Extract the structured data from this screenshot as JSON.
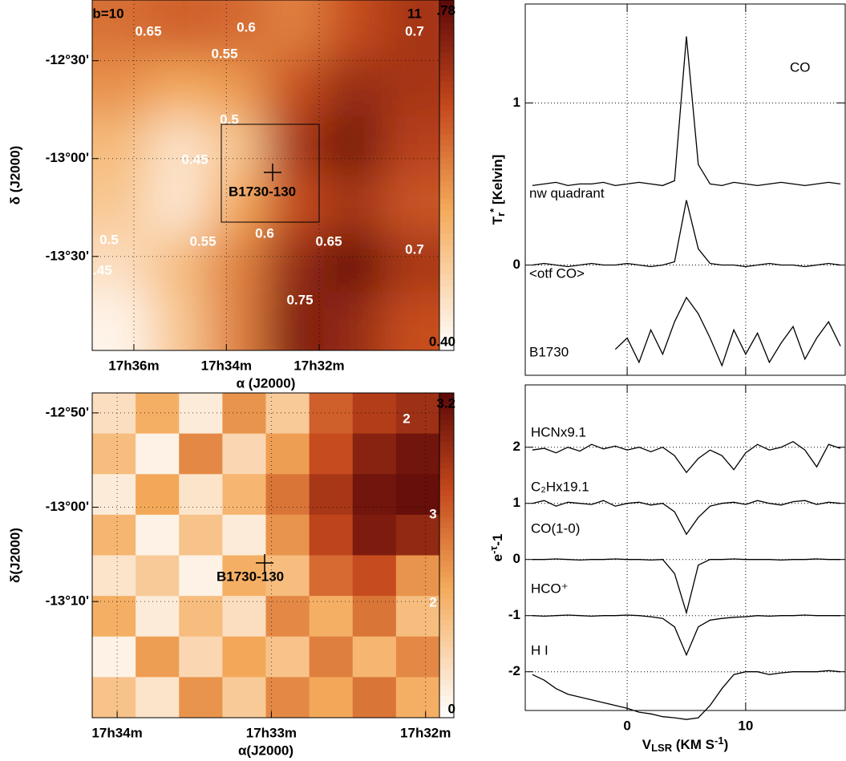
{
  "chart_data": [
    {
      "type": "heatmap",
      "z": [
        [
          0.62,
          0.64,
          0.63,
          0.6,
          0.66,
          0.7
        ],
        [
          0.58,
          0.55,
          0.57,
          0.66,
          0.72,
          0.7
        ],
        [
          0.52,
          0.45,
          0.5,
          0.7,
          0.76,
          0.68
        ],
        [
          0.5,
          0.44,
          0.55,
          0.66,
          0.7,
          0.65
        ],
        [
          0.46,
          0.52,
          0.6,
          0.72,
          0.77,
          0.7
        ],
        [
          0.42,
          0.5,
          0.6,
          0.74,
          0.72,
          0.66
        ]
      ],
      "zlim": [
        0.4,
        0.78
      ],
      "zticks": [
        {
          "value": 0.78,
          "label": ".78"
        },
        {
          "value": 0.4,
          "label": "0.40"
        }
      ],
      "xlim": [
        17.615,
        17.49
      ],
      "xticks": [
        {
          "value": 17.6,
          "label": "17h36m"
        },
        {
          "value": 17.5667,
          "label": "17h34m"
        },
        {
          "value": 17.5333,
          "label": "17h32m"
        }
      ],
      "ylim": [
        -13.98,
        -12.19
      ],
      "yticks": [
        {
          "value": -12.5,
          "label": "-12°30'"
        },
        {
          "value": -13.0,
          "label": "-13°00'"
        },
        {
          "value": -13.5,
          "label": "-13°30'"
        }
      ],
      "xlabel": "α (J2000)",
      "ylabel": "δ (J2000)",
      "source": "B1730-130",
      "grid": true,
      "annotations": [
        "b=10",
        "11",
        "0.65",
        "0.6",
        "0.7",
        "0.55",
        "0.5",
        "0.45",
        "0.5",
        "0.55",
        "0.6",
        "0.65",
        "0.7",
        "0.75",
        ".45"
      ]
    },
    {
      "type": "heatmap",
      "z": [
        [
          0.5,
          1.2,
          0.3,
          1.5,
          0.8,
          2.0,
          2.4,
          2.6
        ],
        [
          1.0,
          0.2,
          1.6,
          0.6,
          1.4,
          2.2,
          2.8,
          3.0
        ],
        [
          0.3,
          1.3,
          0.4,
          1.1,
          1.8,
          2.5,
          3.0,
          3.1
        ],
        [
          1.1,
          0.2,
          0.9,
          0.3,
          1.5,
          2.3,
          2.9,
          2.7
        ],
        [
          0.4,
          0.8,
          0.2,
          1.2,
          1.0,
          1.9,
          2.2,
          1.5
        ],
        [
          1.2,
          0.3,
          1.0,
          0.5,
          1.6,
          1.2,
          1.8,
          1.0
        ],
        [
          0.2,
          1.4,
          0.6,
          1.3,
          0.9,
          1.7,
          1.1,
          1.6
        ],
        [
          0.9,
          0.4,
          1.5,
          0.8,
          1.6,
          1.3,
          1.8,
          1.2
        ]
      ],
      "zlim": [
        0,
        3.2
      ],
      "zticks": [
        3.2,
        0
      ],
      "xlim": [
        17.5694,
        17.5318
      ],
      "xticks": [
        {
          "value": 17.5667,
          "label": "17h34m"
        },
        {
          "value": 17.55,
          "label": "17h33m"
        },
        {
          "value": 17.5333,
          "label": "17h32m"
        }
      ],
      "ylim": [
        -13.372,
        -12.798
      ],
      "yticks": [
        {
          "value": -12.8333,
          "label": "-12°50'"
        },
        {
          "value": -13.0,
          "label": "-13°00'"
        },
        {
          "value": -13.1667,
          "label": "-13°10'"
        }
      ],
      "xlabel": "α(J2000)",
      "ylabel": "δ(J2000)",
      "source": "B1730-130",
      "grid": true,
      "annotations": [
        "2",
        "3",
        "2"
      ]
    },
    {
      "type": "line",
      "x": [
        -8,
        -7,
        -6,
        -5,
        -4,
        -3,
        -2,
        -1,
        0,
        1,
        2,
        3,
        4,
        5,
        6,
        7,
        8,
        9,
        10,
        11,
        12,
        13,
        14,
        15,
        16,
        17,
        18
      ],
      "xlim": [
        -8.6,
        18.4
      ],
      "xticks": [
        0,
        10
      ],
      "ylim": [
        -0.68,
        1.61
      ],
      "yticks": [
        0,
        1
      ],
      "grid": true,
      "ylabel": [
        "T",
        "r",
        "*",
        " [Kelvin]"
      ],
      "annotations": [
        "CO"
      ],
      "series": [
        {
          "name": "nw quadrant",
          "color": "#000000",
          "values": [
            0.49,
            0.5,
            0.51,
            0.49,
            0.5,
            0.5,
            0.51,
            0.49,
            0.5,
            0.51,
            0.5,
            0.49,
            0.52,
            1.41,
            0.62,
            0.5,
            0.49,
            0.51,
            0.5,
            0.49,
            0.5,
            0.51,
            0.5,
            0.49,
            0.5,
            0.51,
            0.5
          ]
        },
        {
          "name": "<otf CO>",
          "color": "#000000",
          "values": [
            0,
            0.01,
            0,
            -0.01,
            0,
            0.01,
            0,
            0,
            0.01,
            0,
            -0.01,
            0,
            0.02,
            0.4,
            0.1,
            0.01,
            0,
            0,
            -0.01,
            0,
            0.01,
            0,
            0,
            -0.01,
            0,
            0.01,
            0
          ]
        },
        {
          "name": "B1730",
          "color": "#000000",
          "values": [
            null,
            null,
            null,
            null,
            null,
            null,
            null,
            -0.52,
            -0.45,
            -0.6,
            -0.4,
            -0.55,
            -0.35,
            -0.2,
            -0.3,
            -0.45,
            -0.62,
            -0.4,
            -0.55,
            -0.42,
            -0.6,
            -0.48,
            -0.38,
            -0.58,
            -0.45,
            -0.35,
            -0.5
          ]
        }
      ]
    },
    {
      "type": "line",
      "x": [
        -8,
        -7,
        -6,
        -5,
        -4,
        -3,
        -2,
        -1,
        0,
        1,
        2,
        3,
        4,
        5,
        6,
        7,
        8,
        9,
        10,
        11,
        12,
        13,
        14,
        15,
        16,
        17,
        18
      ],
      "xlim": [
        -8.6,
        18.4
      ],
      "xticks": [
        0,
        10
      ],
      "ylim": [
        -2.69,
        3.11
      ],
      "yticks": [
        2,
        1,
        0,
        -1,
        -2
      ],
      "grid": true,
      "ylabel": [
        "e",
        "-τ",
        "-1"
      ],
      "xlabel": [
        "V",
        "LSR",
        " (KM S",
        "-1",
        ")"
      ],
      "series": [
        {
          "name": "HCNx9.1",
          "color": "#000000",
          "values": [
            1.95,
            1.98,
            1.9,
            2.0,
            1.93,
            2.05,
            1.97,
            2.02,
            1.95,
            2.0,
            1.92,
            2.0,
            1.85,
            1.55,
            1.8,
            1.95,
            1.85,
            1.6,
            1.9,
            2.05,
            1.95,
            2.0,
            2.1,
            1.95,
            1.65,
            2.05,
            1.98
          ]
        },
        {
          "name": "C₂Hx19.1",
          "color": "#000000",
          "values": [
            1.0,
            1.05,
            0.95,
            1.02,
            1.0,
            0.98,
            1.05,
            0.95,
            1.0,
            1.02,
            0.97,
            1.0,
            0.85,
            0.45,
            0.75,
            0.95,
            1.0,
            1.02,
            0.98,
            1.05,
            1.0,
            0.97,
            1.03,
            1.05,
            0.98,
            1.02,
            1.0
          ]
        },
        {
          "name": "CO(1-0)",
          "color": "#000000",
          "values": [
            0,
            0,
            0.01,
            0,
            -0.01,
            0,
            0,
            0.01,
            0,
            0,
            -0.01,
            0,
            -0.25,
            -0.95,
            -0.1,
            0,
            0,
            0.01,
            0,
            0,
            0,
            -0.01,
            0,
            0,
            0.01,
            0,
            0
          ]
        },
        {
          "name": "HCO⁺",
          "color": "#000000",
          "values": [
            -1,
            -1.01,
            -1,
            -0.99,
            -1,
            -1.01,
            -1,
            -1,
            -0.99,
            -1,
            -1.02,
            -1.05,
            -1.2,
            -1.7,
            -1.2,
            -1.08,
            -1.05,
            -1.03,
            -1.02,
            -1,
            -1.01,
            -1,
            -1,
            -0.99,
            -1,
            -1,
            -1
          ]
        },
        {
          "name": "H I",
          "color": "#000000",
          "values": [
            -2.05,
            -2.15,
            -2.3,
            -2.4,
            -2.45,
            -2.5,
            -2.55,
            -2.6,
            -2.65,
            -2.72,
            -2.75,
            -2.8,
            -2.82,
            -2.85,
            -2.82,
            -2.6,
            -2.3,
            -2.05,
            -2.0,
            -2.0,
            -2.05,
            -2.02,
            -2.0,
            -2.0,
            -2.0,
            -1.98,
            -2.0
          ]
        }
      ]
    }
  ]
}
